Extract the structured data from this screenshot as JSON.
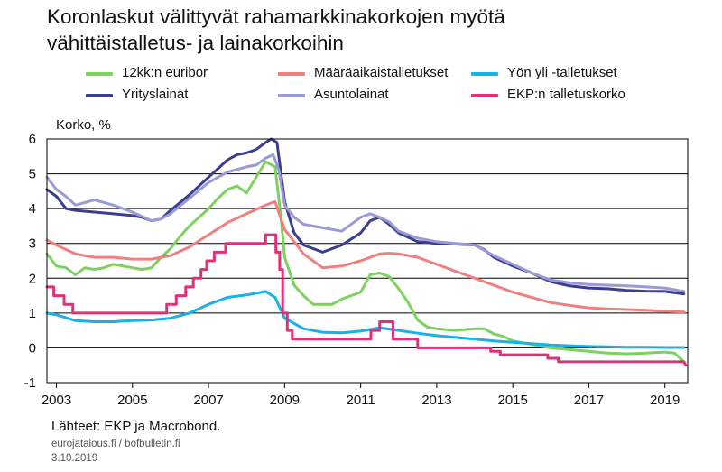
{
  "title_line1": "Koronlaskut välittyvät rahamarkkinakorkojen myötä",
  "title_line2": "vähittäistalletus- ja lainakorkoihin",
  "y_axis_label": "Korko, %",
  "source": "Lähteet: EKP ja Macrobond.",
  "site": "eurojatalous.fi / bofbulletin.fi",
  "date": "3.10.2019",
  "chart_data": {
    "type": "line",
    "xlim": [
      2002.75,
      2019.6
    ],
    "ylim": [
      -1,
      6
    ],
    "y_ticks": [
      -1,
      0,
      1,
      2,
      3,
      4,
      5,
      6
    ],
    "x_ticks": [
      2003,
      2005,
      2007,
      2009,
      2011,
      2013,
      2015,
      2017,
      2019
    ],
    "grid": "horizontal",
    "legend_placement": "top",
    "series": [
      {
        "name": "12kk:n euribor",
        "color": "#7cd35c",
        "points": [
          [
            2002.75,
            2.7
          ],
          [
            2003.0,
            2.35
          ],
          [
            2003.25,
            2.3
          ],
          [
            2003.5,
            2.1
          ],
          [
            2003.75,
            2.3
          ],
          [
            2004.0,
            2.25
          ],
          [
            2004.25,
            2.3
          ],
          [
            2004.5,
            2.4
          ],
          [
            2004.75,
            2.35
          ],
          [
            2005.0,
            2.3
          ],
          [
            2005.25,
            2.25
          ],
          [
            2005.5,
            2.3
          ],
          [
            2005.75,
            2.6
          ],
          [
            2006.0,
            2.85
          ],
          [
            2006.25,
            3.2
          ],
          [
            2006.5,
            3.5
          ],
          [
            2006.75,
            3.75
          ],
          [
            2007.0,
            4.0
          ],
          [
            2007.25,
            4.3
          ],
          [
            2007.5,
            4.55
          ],
          [
            2007.75,
            4.65
          ],
          [
            2008.0,
            4.45
          ],
          [
            2008.25,
            4.9
          ],
          [
            2008.5,
            5.35
          ],
          [
            2008.75,
            5.2
          ],
          [
            2008.9,
            3.8
          ],
          [
            2009.0,
            2.6
          ],
          [
            2009.25,
            1.8
          ],
          [
            2009.5,
            1.5
          ],
          [
            2009.75,
            1.25
          ],
          [
            2010.0,
            1.25
          ],
          [
            2010.25,
            1.25
          ],
          [
            2010.5,
            1.4
          ],
          [
            2010.75,
            1.5
          ],
          [
            2011.0,
            1.6
          ],
          [
            2011.25,
            2.1
          ],
          [
            2011.5,
            2.15
          ],
          [
            2011.75,
            2.05
          ],
          [
            2012.0,
            1.7
          ],
          [
            2012.25,
            1.3
          ],
          [
            2012.5,
            0.8
          ],
          [
            2012.75,
            0.6
          ],
          [
            2013.0,
            0.55
          ],
          [
            2013.5,
            0.5
          ],
          [
            2014.0,
            0.55
          ],
          [
            2014.25,
            0.55
          ],
          [
            2014.5,
            0.4
          ],
          [
            2014.75,
            0.33
          ],
          [
            2015.0,
            0.2
          ],
          [
            2015.5,
            0.1
          ],
          [
            2016.0,
            0.0
          ],
          [
            2016.5,
            -0.05
          ],
          [
            2017.0,
            -0.1
          ],
          [
            2017.5,
            -0.15
          ],
          [
            2018.0,
            -0.17
          ],
          [
            2018.5,
            -0.15
          ],
          [
            2019.0,
            -0.12
          ],
          [
            2019.25,
            -0.15
          ],
          [
            2019.5,
            -0.4
          ]
        ]
      },
      {
        "name": "Määräaikaistalletukset",
        "color": "#f08080",
        "points": [
          [
            2002.75,
            3.1
          ],
          [
            2003.0,
            2.95
          ],
          [
            2003.5,
            2.7
          ],
          [
            2004.0,
            2.6
          ],
          [
            2004.5,
            2.6
          ],
          [
            2005.0,
            2.55
          ],
          [
            2005.5,
            2.55
          ],
          [
            2006.0,
            2.65
          ],
          [
            2006.5,
            2.9
          ],
          [
            2007.0,
            3.25
          ],
          [
            2007.5,
            3.6
          ],
          [
            2008.0,
            3.85
          ],
          [
            2008.5,
            4.1
          ],
          [
            2008.75,
            4.2
          ],
          [
            2009.0,
            3.4
          ],
          [
            2009.5,
            2.7
          ],
          [
            2010.0,
            2.3
          ],
          [
            2010.5,
            2.35
          ],
          [
            2011.0,
            2.5
          ],
          [
            2011.5,
            2.7
          ],
          [
            2011.75,
            2.72
          ],
          [
            2012.0,
            2.7
          ],
          [
            2012.5,
            2.6
          ],
          [
            2013.0,
            2.4
          ],
          [
            2013.5,
            2.2
          ],
          [
            2014.0,
            2.0
          ],
          [
            2014.5,
            1.8
          ],
          [
            2015.0,
            1.6
          ],
          [
            2015.5,
            1.45
          ],
          [
            2016.0,
            1.3
          ],
          [
            2016.5,
            1.22
          ],
          [
            2017.0,
            1.15
          ],
          [
            2017.5,
            1.12
          ],
          [
            2018.0,
            1.1
          ],
          [
            2018.5,
            1.08
          ],
          [
            2019.0,
            1.05
          ],
          [
            2019.5,
            1.03
          ]
        ]
      },
      {
        "name": "Yön yli -talletukset",
        "color": "#1ab0e8",
        "points": [
          [
            2002.75,
            1.0
          ],
          [
            2003.0,
            0.95
          ],
          [
            2003.5,
            0.78
          ],
          [
            2004.0,
            0.75
          ],
          [
            2004.5,
            0.75
          ],
          [
            2005.0,
            0.78
          ],
          [
            2005.5,
            0.8
          ],
          [
            2006.0,
            0.85
          ],
          [
            2006.5,
            1.0
          ],
          [
            2007.0,
            1.25
          ],
          [
            2007.5,
            1.45
          ],
          [
            2008.0,
            1.52
          ],
          [
            2008.5,
            1.62
          ],
          [
            2008.75,
            1.45
          ],
          [
            2009.0,
            0.85
          ],
          [
            2009.5,
            0.55
          ],
          [
            2010.0,
            0.45
          ],
          [
            2010.5,
            0.43
          ],
          [
            2011.0,
            0.48
          ],
          [
            2011.5,
            0.58
          ],
          [
            2012.0,
            0.5
          ],
          [
            2012.5,
            0.42
          ],
          [
            2013.0,
            0.35
          ],
          [
            2013.5,
            0.3
          ],
          [
            2014.0,
            0.25
          ],
          [
            2014.5,
            0.2
          ],
          [
            2015.0,
            0.16
          ],
          [
            2015.5,
            0.12
          ],
          [
            2016.0,
            0.08
          ],
          [
            2016.5,
            0.06
          ],
          [
            2017.0,
            0.04
          ],
          [
            2017.5,
            0.03
          ],
          [
            2018.0,
            0.02
          ],
          [
            2018.5,
            0.02
          ],
          [
            2019.0,
            0.01
          ],
          [
            2019.5,
            0.01
          ]
        ]
      },
      {
        "name": "Yrityslainat",
        "color": "#3b3d8f",
        "points": [
          [
            2002.75,
            4.55
          ],
          [
            2003.0,
            4.35
          ],
          [
            2003.25,
            4.0
          ],
          [
            2003.5,
            3.95
          ],
          [
            2004.0,
            3.9
          ],
          [
            2004.5,
            3.85
          ],
          [
            2005.0,
            3.8
          ],
          [
            2005.25,
            3.75
          ],
          [
            2005.5,
            3.65
          ],
          [
            2005.75,
            3.7
          ],
          [
            2006.0,
            3.95
          ],
          [
            2006.5,
            4.4
          ],
          [
            2007.0,
            4.9
          ],
          [
            2007.5,
            5.4
          ],
          [
            2007.75,
            5.55
          ],
          [
            2008.0,
            5.6
          ],
          [
            2008.25,
            5.7
          ],
          [
            2008.5,
            5.9
          ],
          [
            2008.65,
            6.0
          ],
          [
            2008.8,
            5.9
          ],
          [
            2009.0,
            4.2
          ],
          [
            2009.25,
            3.3
          ],
          [
            2009.5,
            2.95
          ],
          [
            2009.75,
            2.85
          ],
          [
            2010.0,
            2.75
          ],
          [
            2010.5,
            2.95
          ],
          [
            2011.0,
            3.3
          ],
          [
            2011.25,
            3.65
          ],
          [
            2011.5,
            3.75
          ],
          [
            2011.75,
            3.55
          ],
          [
            2012.0,
            3.3
          ],
          [
            2012.5,
            3.05
          ],
          [
            2013.0,
            3.0
          ],
          [
            2013.5,
            2.98
          ],
          [
            2014.0,
            2.95
          ],
          [
            2014.25,
            2.82
          ],
          [
            2014.5,
            2.6
          ],
          [
            2015.0,
            2.35
          ],
          [
            2015.5,
            2.15
          ],
          [
            2016.0,
            1.9
          ],
          [
            2016.5,
            1.78
          ],
          [
            2017.0,
            1.72
          ],
          [
            2017.5,
            1.7
          ],
          [
            2018.0,
            1.65
          ],
          [
            2018.5,
            1.63
          ],
          [
            2019.0,
            1.62
          ],
          [
            2019.5,
            1.55
          ]
        ]
      },
      {
        "name": "Asuntolainat",
        "color": "#9a9ad6",
        "points": [
          [
            2002.75,
            4.9
          ],
          [
            2003.0,
            4.55
          ],
          [
            2003.25,
            4.35
          ],
          [
            2003.5,
            4.1
          ],
          [
            2004.0,
            4.25
          ],
          [
            2004.5,
            4.1
          ],
          [
            2005.0,
            3.9
          ],
          [
            2005.5,
            3.65
          ],
          [
            2005.75,
            3.7
          ],
          [
            2006.0,
            3.85
          ],
          [
            2006.5,
            4.3
          ],
          [
            2007.0,
            4.75
          ],
          [
            2007.5,
            5.05
          ],
          [
            2008.0,
            5.2
          ],
          [
            2008.25,
            5.25
          ],
          [
            2008.5,
            5.45
          ],
          [
            2008.7,
            5.55
          ],
          [
            2008.85,
            5.1
          ],
          [
            2009.0,
            4.1
          ],
          [
            2009.25,
            3.75
          ],
          [
            2009.5,
            3.55
          ],
          [
            2010.0,
            3.45
          ],
          [
            2010.5,
            3.35
          ],
          [
            2011.0,
            3.75
          ],
          [
            2011.25,
            3.85
          ],
          [
            2011.5,
            3.75
          ],
          [
            2011.75,
            3.62
          ],
          [
            2012.0,
            3.35
          ],
          [
            2012.5,
            3.15
          ],
          [
            2013.0,
            3.05
          ],
          [
            2013.5,
            3.0
          ],
          [
            2014.0,
            2.95
          ],
          [
            2014.5,
            2.65
          ],
          [
            2015.0,
            2.4
          ],
          [
            2015.5,
            2.15
          ],
          [
            2016.0,
            1.95
          ],
          [
            2016.5,
            1.87
          ],
          [
            2017.0,
            1.82
          ],
          [
            2017.5,
            1.8
          ],
          [
            2018.0,
            1.78
          ],
          [
            2018.5,
            1.75
          ],
          [
            2019.0,
            1.72
          ],
          [
            2019.5,
            1.62
          ]
        ]
      },
      {
        "name": "EKP:n talletuskorko",
        "color": "#e0307a",
        "step": true,
        "points": [
          [
            2002.75,
            1.75
          ],
          [
            2002.93,
            1.75
          ],
          [
            2002.93,
            1.5
          ],
          [
            2003.2,
            1.5
          ],
          [
            2003.2,
            1.25
          ],
          [
            2003.43,
            1.25
          ],
          [
            2003.43,
            1.0
          ],
          [
            2005.9,
            1.0
          ],
          [
            2005.9,
            1.25
          ],
          [
            2006.15,
            1.25
          ],
          [
            2006.15,
            1.5
          ],
          [
            2006.4,
            1.5
          ],
          [
            2006.4,
            1.75
          ],
          [
            2006.6,
            1.75
          ],
          [
            2006.6,
            2.0
          ],
          [
            2006.8,
            2.0
          ],
          [
            2006.8,
            2.25
          ],
          [
            2006.95,
            2.25
          ],
          [
            2006.95,
            2.5
          ],
          [
            2007.15,
            2.5
          ],
          [
            2007.15,
            2.75
          ],
          [
            2007.45,
            2.75
          ],
          [
            2007.45,
            3.0
          ],
          [
            2008.5,
            3.0
          ],
          [
            2008.5,
            3.25
          ],
          [
            2008.77,
            3.25
          ],
          [
            2008.77,
            2.75
          ],
          [
            2008.87,
            2.75
          ],
          [
            2008.87,
            2.25
          ],
          [
            2008.95,
            2.25
          ],
          [
            2008.95,
            1.0
          ],
          [
            2009.07,
            1.0
          ],
          [
            2009.07,
            0.5
          ],
          [
            2009.2,
            0.5
          ],
          [
            2009.2,
            0.25
          ],
          [
            2011.27,
            0.25
          ],
          [
            2011.27,
            0.5
          ],
          [
            2011.5,
            0.5
          ],
          [
            2011.5,
            0.75
          ],
          [
            2011.85,
            0.75
          ],
          [
            2011.85,
            0.25
          ],
          [
            2012.5,
            0.25
          ],
          [
            2012.5,
            0.0
          ],
          [
            2014.42,
            0.0
          ],
          [
            2014.42,
            -0.1
          ],
          [
            2014.67,
            -0.1
          ],
          [
            2014.67,
            -0.2
          ],
          [
            2015.92,
            -0.2
          ],
          [
            2015.92,
            -0.3
          ],
          [
            2016.2,
            -0.3
          ],
          [
            2016.2,
            -0.4
          ],
          [
            2019.5,
            -0.4
          ],
          [
            2019.55,
            -0.5
          ]
        ]
      }
    ]
  },
  "legend_rows": [
    [
      "12kk:n euribor",
      "Määräaikaistalletukset",
      "Yön yli -talletukset"
    ],
    [
      "Yrityslainat",
      "Asuntolainat",
      "EKP:n talletuskorko"
    ]
  ]
}
